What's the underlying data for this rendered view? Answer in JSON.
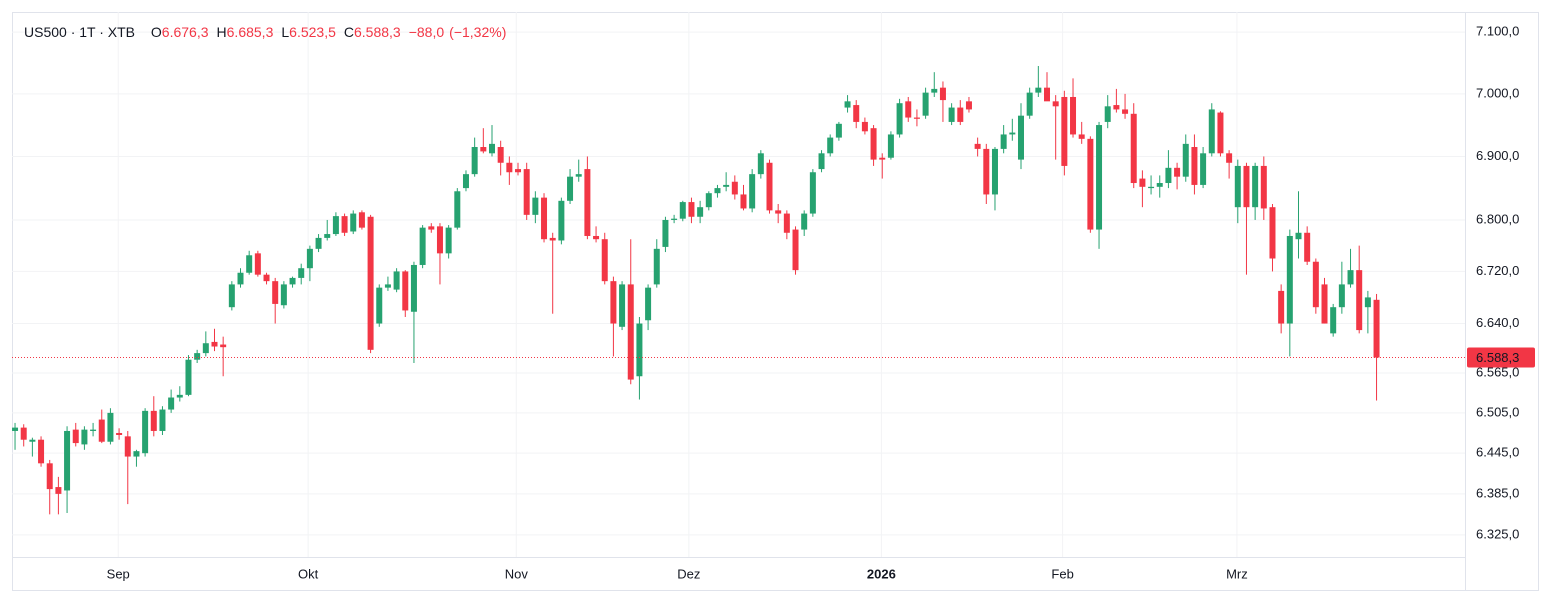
{
  "chart_data": {
    "type": "candlestick",
    "header": {
      "symbol": "US500 · 1T · XTB",
      "ohlc_legend": [
        {
          "key": "O",
          "value": 6676.3,
          "label": "6.676,3"
        },
        {
          "key": "H",
          "value": 6685.3,
          "label": "6.685,3"
        },
        {
          "key": "L",
          "value": 6523.5,
          "label": "6.523,5"
        },
        {
          "key": "C",
          "value": 6588.3,
          "label": "6.588,3"
        }
      ],
      "change": {
        "value": -88.0,
        "label": "−88,0"
      },
      "change_pct": {
        "value": -1.32,
        "label": "(−1,32%)"
      }
    },
    "up_color": "#26a270",
    "down_color": "#f23645",
    "last_price": {
      "value": 6588.3,
      "label": "6.588,3"
    },
    "log_scale": true,
    "grid": true,
    "ylim": [
      6293,
      7133
    ],
    "yticks": [
      {
        "value": 7100,
        "label": "7.100,0"
      },
      {
        "value": 7000,
        "label": "7.000,0"
      },
      {
        "value": 6900,
        "label": "6.900,0"
      },
      {
        "value": 6800,
        "label": "6.800,0"
      },
      {
        "value": 6720,
        "label": "6.720,0"
      },
      {
        "value": 6640,
        "label": "6.640,0"
      },
      {
        "value": 6565,
        "label": "6.565,0"
      },
      {
        "value": 6505,
        "label": "6.505,0"
      },
      {
        "value": 6445,
        "label": "6.445,0"
      },
      {
        "value": 6385,
        "label": "6.385,0"
      },
      {
        "value": 6325,
        "label": "6.325,0"
      }
    ],
    "xlim": [
      -0.35,
      167.2
    ],
    "xticks": [
      {
        "value": 11.9,
        "label": "Sep"
      },
      {
        "value": 33.8,
        "label": "Okt"
      },
      {
        "value": 57.8,
        "label": "Nov"
      },
      {
        "value": 77.7,
        "label": "Dez"
      },
      {
        "value": 99.9,
        "label": "2026",
        "bold": true
      },
      {
        "value": 120.8,
        "label": "Feb"
      },
      {
        "value": 140.9,
        "label": "Mrz"
      }
    ],
    "open": [
      6478,
      6483,
      6462,
      6465,
      6430,
      6395,
      6390,
      6480,
      6458,
      6478,
      6495,
      6462,
      6475,
      6470,
      6440,
      6445,
      6508,
      6478,
      6510,
      6528,
      6532,
      6585,
      6595,
      6612,
      6608,
      6665,
      6700,
      6718,
      6748,
      6715,
      6705,
      6668,
      6700,
      6710,
      6725,
      6755,
      6772,
      6778,
      6806,
      6782,
      6812,
      6805,
      6640,
      6695,
      6692,
      6720,
      6658,
      6730,
      6790,
      6790,
      6748,
      6788,
      6850,
      6872,
      6915,
      6905,
      6915,
      6890,
      6880,
      6880,
      6808,
      6835,
      6772,
      6768,
      6830,
      6868,
      6880,
      6775,
      6770,
      6705,
      6635,
      6700,
      6560,
      6645,
      6700,
      6758,
      6800,
      6802,
      6828,
      6805,
      6820,
      6842,
      6852,
      6860,
      6840,
      6818,
      6872,
      6890,
      6815,
      6810,
      6785,
      6785,
      6810,
      6880,
      6905,
      6930,
      6978,
      6982,
      6955,
      6945,
      6898,
      6898,
      6935,
      6988,
      6962,
      6965,
      7002,
      7010,
      6955,
      6978,
      6988,
      6920,
      6912,
      6840,
      6912,
      6935,
      6895,
      6965,
      7002,
      7010,
      6988,
      6995,
      6995,
      6935,
      6928,
      6785,
      6955,
      6982,
      6975,
      6968,
      6865,
      6850,
      6852,
      6858,
      6882,
      6868,
      6915,
      6855,
      6905,
      6970,
      6905,
      6820,
      6885,
      6820,
      6885,
      6820,
      6690,
      6640,
      6770,
      6780,
      6735,
      6700,
      6625,
      6665,
      6700,
      6722,
      6665,
      6676.3
    ],
    "high": [
      6490,
      6488,
      6468,
      6470,
      6435,
      6410,
      6485,
      6490,
      6485,
      6490,
      6510,
      6512,
      6482,
      6478,
      6450,
      6512,
      6530,
      6515,
      6540,
      6545,
      6592,
      6600,
      6628,
      6632,
      6620,
      6705,
      6725,
      6752,
      6752,
      6718,
      6710,
      6705,
      6712,
      6732,
      6760,
      6778,
      6800,
      6812,
      6810,
      6815,
      6815,
      6808,
      6700,
      6712,
      6725,
      6722,
      6735,
      6792,
      6795,
      6795,
      6792,
      6850,
      6878,
      6930,
      6945,
      6950,
      6925,
      6900,
      6890,
      6890,
      6845,
      6842,
      6780,
      6835,
      6880,
      6895,
      6900,
      6790,
      6780,
      6712,
      6705,
      6770,
      6650,
      6700,
      6770,
      6805,
      6808,
      6830,
      6835,
      6830,
      6845,
      6855,
      6875,
      6870,
      6855,
      6880,
      6910,
      6895,
      6825,
      6815,
      6790,
      6815,
      6880,
      6910,
      6935,
      6955,
      6998,
      6990,
      6962,
      6950,
      6905,
      6940,
      6992,
      6995,
      6975,
      7010,
      7035,
      7020,
      6985,
      6990,
      6995,
      6930,
      6920,
      6915,
      6950,
      6960,
      6985,
      7010,
      7045,
      7035,
      6998,
      7005,
      7025,
      6955,
      6932,
      6955,
      6998,
      7008,
      7000,
      6985,
      6878,
      6870,
      6870,
      6910,
      6890,
      6935,
      6935,
      6915,
      6985,
      6972,
      6910,
      6895,
      6890,
      6890,
      6900,
      6825,
      6700,
      6785,
      6845,
      6790,
      6740,
      6710,
      6670,
      6735,
      6755,
      6760,
      6690,
      6685.3
    ],
    "low": [
      6450,
      6455,
      6440,
      6425,
      6355,
      6355,
      6357,
      6455,
      6450,
      6470,
      6460,
      6458,
      6465,
      6370,
      6425,
      6440,
      6470,
      6472,
      6505,
      6522,
      6530,
      6580,
      6590,
      6598,
      6560,
      6660,
      6695,
      6715,
      6712,
      6700,
      6640,
      6663,
      6695,
      6700,
      6705,
      6750,
      6768,
      6775,
      6775,
      6778,
      6785,
      6595,
      6635,
      6690,
      6688,
      6650,
      6580,
      6725,
      6780,
      6700,
      6740,
      6785,
      6845,
      6868,
      6905,
      6900,
      6870,
      6855,
      6870,
      6800,
      6795,
      6765,
      6655,
      6762,
      6825,
      6860,
      6770,
      6765,
      6700,
      6590,
      6630,
      6548,
      6525,
      6630,
      6695,
      6750,
      6795,
      6798,
      6795,
      6795,
      6815,
      6835,
      6845,
      6832,
      6815,
      6812,
      6865,
      6810,
      6795,
      6770,
      6715,
      6775,
      6805,
      6875,
      6900,
      6925,
      6970,
      6945,
      6935,
      6885,
      6865,
      6895,
      6930,
      6955,
      6948,
      6960,
      6995,
      6955,
      6950,
      6950,
      6970,
      6900,
      6825,
      6815,
      6905,
      6925,
      6880,
      6960,
      6995,
      6990,
      6895,
      6870,
      6930,
      6920,
      6780,
      6755,
      6945,
      6970,
      6960,
      6850,
      6820,
      6840,
      6835,
      6850,
      6848,
      6860,
      6840,
      6850,
      6900,
      6900,
      6865,
      6795,
      6715,
      6800,
      6800,
      6720,
      6625,
      6590,
      6740,
      6730,
      6655,
      6640,
      6620,
      6655,
      6695,
      6625,
      6625,
      6523.5
    ],
    "close": [
      6483,
      6465,
      6465,
      6430,
      6392,
      6385,
      6478,
      6460,
      6480,
      6480,
      6462,
      6505,
      6472,
      6440,
      6448,
      6508,
      6478,
      6510,
      6528,
      6532,
      6585,
      6595,
      6610,
      6605,
      6604,
      6700,
      6718,
      6745,
      6715,
      6705,
      6670,
      6700,
      6710,
      6725,
      6755,
      6772,
      6778,
      6806,
      6780,
      6810,
      6788,
      6600,
      6695,
      6700,
      6720,
      6660,
      6730,
      6788,
      6785,
      6748,
      6788,
      6845,
      6872,
      6915,
      6908,
      6920,
      6890,
      6875,
      6875,
      6808,
      6835,
      6770,
      6768,
      6830,
      6868,
      6872,
      6775,
      6770,
      6705,
      6640,
      6700,
      6555,
      6640,
      6695,
      6755,
      6800,
      6802,
      6828,
      6805,
      6820,
      6842,
      6850,
      6855,
      6840,
      6818,
      6872,
      6905,
      6815,
      6810,
      6780,
      6722,
      6810,
      6875,
      6905,
      6930,
      6952,
      6988,
      6955,
      6940,
      6895,
      6895,
      6935,
      6985,
      6962,
      6960,
      7002,
      7008,
      6990,
      6978,
      6955,
      6975,
      6912,
      6840,
      6912,
      6935,
      6938,
      6965,
      7002,
      7010,
      6988,
      6980,
      6885,
      6935,
      6928,
      6785,
      6950,
      6980,
      6975,
      6968,
      6858,
      6852,
      6852,
      6858,
      6882,
      6868,
      6920,
      6855,
      6905,
      6975,
      6905,
      6890,
      6885,
      6820,
      6885,
      6818,
      6740,
      6640,
      6775,
      6780,
      6735,
      6665,
      6640,
      6665,
      6700,
      6722,
      6630,
      6680,
      6588.3
    ]
  }
}
